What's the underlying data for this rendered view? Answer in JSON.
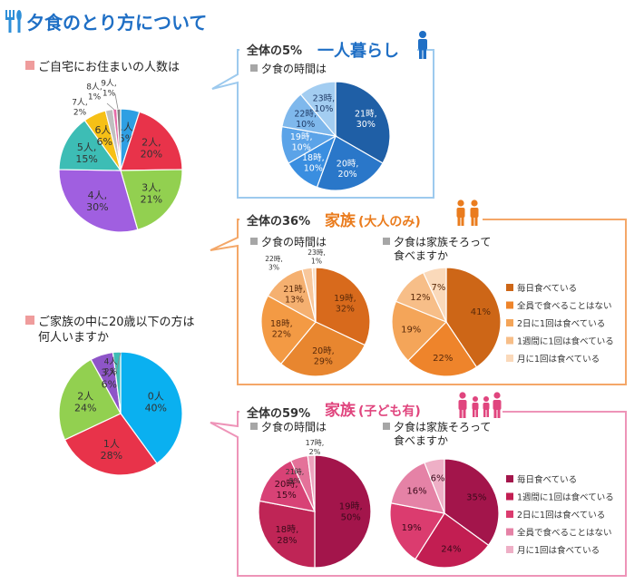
{
  "page": {
    "title": "夕食のとり方について"
  },
  "palettes": {
    "household": [
      "#2E9FE3",
      "#E8334A",
      "#92D050",
      "#A05FE0",
      "#3DBDB5",
      "#F6C016",
      "#C0C0C0",
      "#E56BA8",
      "#7F7F7F"
    ],
    "minors": [
      "#0AB0F0",
      "#E8334A",
      "#92D050",
      "#8E55C8",
      "#3DBDB5"
    ],
    "single": [
      "#1F5FA6",
      "#2A77C9",
      "#3A8EE0",
      "#5BA3E8",
      "#7FB8EC",
      "#A3CDF1"
    ],
    "adult_time": [
      "#D86A1C",
      "#E8862F",
      "#F39A44",
      "#F5B070",
      "#F8C79B",
      "#FADCC0"
    ],
    "adult_meal": [
      "#CD6617",
      "#EE842B",
      "#F4A559",
      "#F7BE88",
      "#FAD9BA"
    ],
    "child_time": [
      "#A3154B",
      "#BF2556",
      "#D84276",
      "#E47199",
      "#EDA2BD"
    ],
    "child_meal": [
      "#A3154B",
      "#C21E52",
      "#DB3C6F",
      "#E582A6",
      "#EEAFC6"
    ],
    "frame_blue": "#9DCAEE",
    "frame_orange": "#F4A768",
    "frame_pink": "#EE94B8",
    "title_blue": "#1F6FC5",
    "title_orange": "#EA7C1E",
    "title_pink": "#E0457E",
    "square_mark": "#EF9C9C",
    "gray_mark": "#A6A6A6"
  },
  "left": {
    "q1": "ご自宅にお住まいの人数は",
    "q2_line1": "ご家族の中に20歳以下の方は",
    "q2_line2": "何人いますか"
  },
  "single": {
    "prefix": "全体の5%",
    "label": "一人暮らし",
    "sub": "夕食の時間は"
  },
  "adult": {
    "prefix": "全体の36%",
    "label": "家族",
    "label_paren": "(大人のみ)",
    "sub_time": "夕食の時間は",
    "sub_meal_line1": "夕食は家族そろって",
    "sub_meal_line2": "食べますか"
  },
  "child": {
    "prefix": "全体の59%",
    "label": "家族",
    "label_paren": "(子ども有)",
    "sub_time": "夕食の時間は",
    "sub_meal_line1": "夕食は家族そろって",
    "sub_meal_line2": "食べますか"
  },
  "chart_data": [
    {
      "id": "household",
      "type": "pie",
      "title": "ご自宅にお住まいの人数は",
      "categories": [
        "1人",
        "2人",
        "3人",
        "4人",
        "5人",
        "6人",
        "7人",
        "8人",
        "9人"
      ],
      "values": [
        5,
        20,
        21,
        30,
        15,
        6,
        2,
        1,
        1
      ],
      "labels": [
        [
          "1人,",
          "5%"
        ],
        [
          "2人,",
          "20%"
        ],
        [
          "3人,",
          "21%"
        ],
        [
          "4人,",
          "30%"
        ],
        [
          "5人,",
          "15%"
        ],
        [
          "6人,",
          "6%"
        ],
        [
          "7人,",
          "2%"
        ],
        [
          "8人,",
          "1%"
        ],
        [
          "9人,",
          "1%"
        ]
      ]
    },
    {
      "id": "minors",
      "type": "pie",
      "title": "ご家族の中に20歳以下の方は何人いますか",
      "categories": [
        "0人",
        "1人",
        "2人",
        "3人",
        "4人"
      ],
      "values": [
        40,
        28,
        24,
        6,
        2
      ],
      "labels": [
        [
          "0人",
          "40%"
        ],
        [
          "1人",
          "28%"
        ],
        [
          "2人",
          "24%"
        ],
        [
          "3人",
          "6%"
        ],
        [
          "4人",
          "2%"
        ]
      ]
    },
    {
      "id": "single_time",
      "type": "pie",
      "title": "夕食の時間は",
      "categories": [
        "21時",
        "20時",
        "18時",
        "19時",
        "22時",
        "23時"
      ],
      "values": [
        30,
        20,
        10,
        10,
        10,
        10
      ],
      "labels": [
        [
          "21時,",
          "30%"
        ],
        [
          "20時,",
          "20%"
        ],
        [
          "18時,",
          "10%"
        ],
        [
          "19時,",
          "10%"
        ],
        [
          "22時,",
          "10%"
        ],
        [
          "23時,",
          "10%"
        ]
      ]
    },
    {
      "id": "adult_time",
      "type": "pie",
      "title": "夕食の時間は",
      "categories": [
        "19時",
        "20時",
        "18時",
        "21時",
        "22時",
        "23時"
      ],
      "values": [
        32,
        29,
        22,
        13,
        3,
        1
      ],
      "labels": [
        [
          "19時,",
          "32%"
        ],
        [
          "20時,",
          "29%"
        ],
        [
          "18時,",
          "22%"
        ],
        [
          "21時,",
          "13%"
        ],
        [
          "22時,",
          "3%"
        ],
        [
          "23時,",
          "1%"
        ]
      ]
    },
    {
      "id": "adult_meal",
      "type": "pie",
      "title": "夕食は家族そろって食べますか",
      "categories": [
        "毎日食べている",
        "全員で食べることはない",
        "2日に1回は食べている",
        "1週間に1回は食べている",
        "月に1回は食べている"
      ],
      "values": [
        41,
        22,
        19,
        12,
        7
      ],
      "labels": [
        [
          "41%"
        ],
        [
          "22%"
        ],
        [
          "19%"
        ],
        [
          "12%"
        ],
        [
          "7%"
        ]
      ],
      "legend": [
        "毎日食べている",
        "全員で食べることはない",
        "2日に1回は食べている",
        "1週間に1回は食べている",
        "月に1回は食べている"
      ]
    },
    {
      "id": "child_time",
      "type": "pie",
      "title": "夕食の時間は",
      "categories": [
        "19時",
        "18時",
        "20時",
        "21時",
        "17時"
      ],
      "values": [
        50,
        28,
        15,
        5,
        2
      ],
      "labels": [
        [
          "19時,",
          "50%"
        ],
        [
          "18時,",
          "28%"
        ],
        [
          "20時,",
          "15%"
        ],
        [
          "21時,",
          "5%"
        ],
        [
          "17時,",
          "2%"
        ]
      ]
    },
    {
      "id": "child_meal",
      "type": "pie",
      "title": "夕食は家族そろって食べますか",
      "categories": [
        "毎日食べている",
        "1週間に1回は食べている",
        "2日に1回は食べている",
        "全員で食べることはない",
        "月に1回は食べている"
      ],
      "values": [
        35,
        24,
        19,
        16,
        6
      ],
      "labels": [
        [
          "35%"
        ],
        [
          "24%"
        ],
        [
          "19%"
        ],
        [
          "16%"
        ],
        [
          "6%"
        ]
      ],
      "legend": [
        "毎日食べている",
        "1週間に1回は食べている",
        "2日に1回は食べている",
        "全員で食べることはない",
        "月に1回は食べている"
      ]
    }
  ]
}
